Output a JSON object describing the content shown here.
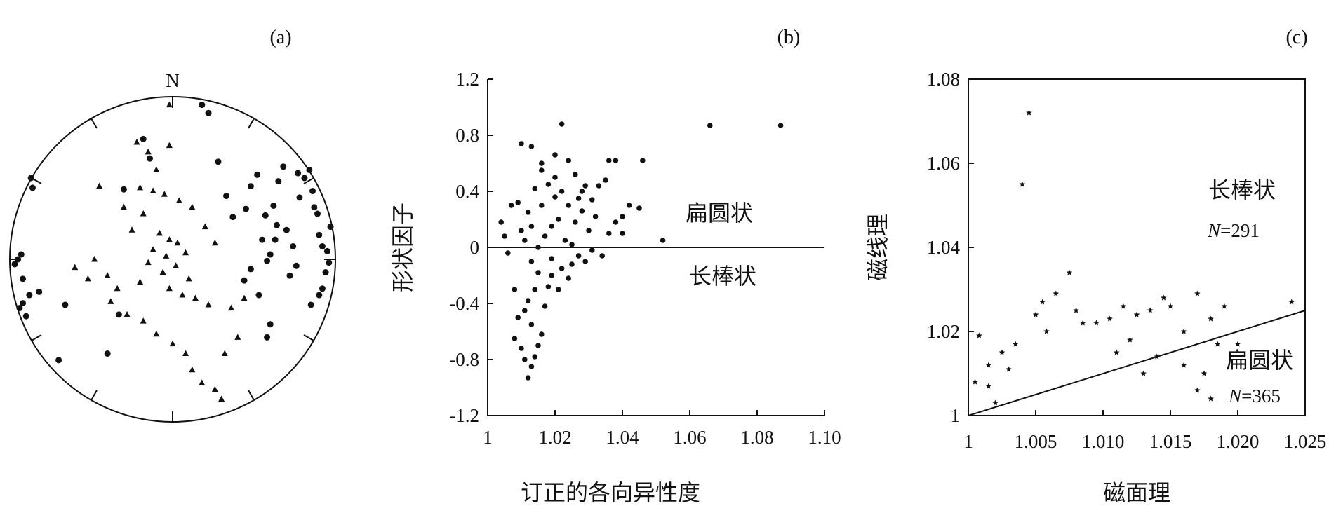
{
  "chart_data": [
    {
      "panel": "(a)",
      "type": "scatter",
      "subtype": "stereonet",
      "north_label": "N",
      "series": [
        {
          "marker": "circle",
          "points": [
            [
              -0.86,
              0.44
            ],
            [
              -0.87,
              0.5
            ],
            [
              -0.93,
              0.03
            ],
            [
              -0.95,
              0.0
            ],
            [
              -0.97,
              -0.03
            ],
            [
              -0.92,
              -0.12
            ],
            [
              -0.88,
              -0.22
            ],
            [
              -0.92,
              -0.27
            ],
            [
              -0.9,
              -0.35
            ],
            [
              -0.94,
              -0.3
            ],
            [
              -0.82,
              -0.2
            ],
            [
              -0.66,
              -0.28
            ],
            [
              -0.7,
              -0.62
            ],
            [
              -0.4,
              -0.58
            ],
            [
              -0.33,
              -0.34
            ],
            [
              -0.3,
              0.43
            ],
            [
              -0.14,
              0.62
            ],
            [
              -0.18,
              0.74
            ],
            [
              0.18,
              0.95
            ],
            [
              0.22,
              0.9
            ],
            [
              0.33,
              0.39
            ],
            [
              0.37,
              0.26
            ],
            [
              0.45,
              0.31
            ],
            [
              0.57,
              0.27
            ],
            [
              0.62,
              0.33
            ],
            [
              0.64,
              0.21
            ],
            [
              0.63,
              0.12
            ],
            [
              0.6,
              0.03
            ],
            [
              0.58,
              -0.01
            ],
            [
              0.55,
              0.12
            ],
            [
              0.48,
              -0.06
            ],
            [
              0.44,
              -0.13
            ],
            [
              0.53,
              -0.22
            ],
            [
              0.6,
              -0.4
            ],
            [
              0.58,
              -0.48
            ],
            [
              0.7,
              0.18
            ],
            [
              0.74,
              0.08
            ],
            [
              0.76,
              -0.04
            ],
            [
              0.72,
              -0.1
            ],
            [
              0.78,
              0.38
            ],
            [
              0.77,
              0.53
            ],
            [
              0.81,
              0.5
            ],
            [
              0.65,
              0.48
            ],
            [
              0.86,
              0.42
            ],
            [
              0.87,
              0.32
            ],
            [
              0.9,
              0.15
            ],
            [
              0.92,
              0.08
            ],
            [
              0.95,
              0.05
            ],
            [
              0.96,
              -0.02
            ],
            [
              0.94,
              -0.08
            ],
            [
              0.92,
              -0.18
            ],
            [
              0.9,
              -0.22
            ],
            [
              0.85,
              -0.28
            ],
            [
              0.97,
              0.2
            ],
            [
              0.89,
              0.28
            ],
            [
              0.84,
              0.55
            ],
            [
              0.68,
              0.57
            ],
            [
              0.52,
              0.52
            ],
            [
              0.48,
              0.45
            ],
            [
              0.28,
              0.6
            ]
          ]
        },
        {
          "marker": "triangle",
          "points": [
            [
              -0.02,
              0.95
            ],
            [
              -0.22,
              0.72
            ],
            [
              -0.15,
              0.66
            ],
            [
              -0.1,
              0.55
            ],
            [
              -0.45,
              0.45
            ],
            [
              -0.2,
              0.44
            ],
            [
              -0.12,
              0.42
            ],
            [
              -0.05,
              0.4
            ],
            [
              -0.18,
              0.28
            ],
            [
              -0.25,
              0.18
            ],
            [
              -0.08,
              0.16
            ],
            [
              -0.02,
              0.12
            ],
            [
              0.03,
              0.1
            ],
            [
              -0.12,
              0.06
            ],
            [
              -0.04,
              0.02
            ],
            [
              -0.15,
              -0.02
            ],
            [
              0.08,
              0.04
            ],
            [
              0.02,
              -0.04
            ],
            [
              -0.06,
              -0.08
            ],
            [
              0.1,
              -0.12
            ],
            [
              -0.2,
              -0.14
            ],
            [
              -0.02,
              -0.18
            ],
            [
              0.06,
              -0.22
            ],
            [
              0.14,
              -0.24
            ],
            [
              0.22,
              -0.28
            ],
            [
              -0.34,
              -0.18
            ],
            [
              -0.4,
              -0.1
            ],
            [
              -0.52,
              -0.12
            ],
            [
              -0.6,
              -0.05
            ],
            [
              -0.48,
              0.0
            ],
            [
              -0.38,
              -0.26
            ],
            [
              -0.28,
              -0.34
            ],
            [
              -0.18,
              -0.38
            ],
            [
              -0.1,
              -0.46
            ],
            [
              0.0,
              -0.52
            ],
            [
              0.08,
              -0.58
            ],
            [
              0.12,
              -0.68
            ],
            [
              0.18,
              -0.76
            ],
            [
              0.26,
              -0.8
            ],
            [
              0.3,
              -0.86
            ],
            [
              0.32,
              -0.58
            ],
            [
              0.4,
              -0.48
            ],
            [
              0.36,
              -0.3
            ],
            [
              0.44,
              -0.24
            ],
            [
              0.2,
              0.2
            ],
            [
              0.26,
              0.1
            ],
            [
              0.12,
              0.32
            ],
            [
              0.04,
              0.36
            ],
            [
              -0.3,
              0.32
            ],
            [
              -0.02,
              0.7
            ]
          ]
        }
      ]
    },
    {
      "panel": "(b)",
      "type": "scatter",
      "xlabel": "订正的各向异性度",
      "ylabel": "形状因子",
      "xlim": [
        1,
        1.1
      ],
      "ylim": [
        -1.2,
        1.2
      ],
      "xticks": [
        "1",
        "1.02",
        "1.04",
        "1.06",
        "1.08",
        "1.10"
      ],
      "yticks": [
        "1.2",
        "0.8",
        "0.4",
        "0",
        "-0.4",
        "-0.8",
        "-1.2"
      ],
      "reference_line": {
        "y": 0
      },
      "annotations": [
        "扁圆状",
        "长棒状"
      ],
      "points": [
        [
          1.01,
          0.74
        ],
        [
          1.013,
          0.72
        ],
        [
          1.022,
          0.88
        ],
        [
          1.066,
          0.87
        ],
        [
          1.087,
          0.87
        ],
        [
          1.052,
          0.05
        ],
        [
          1.046,
          0.62
        ],
        [
          1.045,
          0.28
        ],
        [
          1.042,
          0.3
        ],
        [
          1.04,
          0.22
        ],
        [
          1.038,
          0.62
        ],
        [
          1.036,
          0.62
        ],
        [
          1.035,
          0.48
        ],
        [
          1.033,
          0.44
        ],
        [
          1.031,
          0.34
        ],
        [
          1.028,
          0.4
        ],
        [
          1.026,
          0.52
        ],
        [
          1.024,
          0.62
        ],
        [
          1.02,
          0.66
        ],
        [
          1.016,
          0.6
        ],
        [
          1.004,
          0.18
        ],
        [
          1.005,
          0.08
        ],
        [
          1.006,
          -0.04
        ],
        [
          1.007,
          0.3
        ],
        [
          1.008,
          -0.3
        ],
        [
          1.009,
          -0.5
        ],
        [
          1.008,
          -0.65
        ],
        [
          1.01,
          -0.72
        ],
        [
          1.011,
          -0.8
        ],
        [
          1.012,
          -0.93
        ],
        [
          1.013,
          -0.85
        ],
        [
          1.014,
          -0.78
        ],
        [
          1.015,
          -0.7
        ],
        [
          1.016,
          -0.62
        ],
        [
          1.013,
          -0.55
        ],
        [
          1.011,
          -0.45
        ],
        [
          1.012,
          -0.38
        ],
        [
          1.014,
          -0.3
        ],
        [
          1.017,
          -0.42
        ],
        [
          1.018,
          -0.28
        ],
        [
          1.019,
          -0.2
        ],
        [
          1.021,
          -0.3
        ],
        [
          1.022,
          -0.15
        ],
        [
          1.024,
          -0.22
        ],
        [
          1.025,
          -0.12
        ],
        [
          1.027,
          -0.06
        ],
        [
          1.029,
          -0.1
        ],
        [
          1.031,
          -0.02
        ],
        [
          1.034,
          -0.06
        ],
        [
          1.036,
          0.1
        ],
        [
          1.038,
          0.18
        ],
        [
          1.04,
          0.1
        ],
        [
          1.032,
          0.22
        ],
        [
          1.03,
          0.12
        ],
        [
          1.028,
          0.26
        ],
        [
          1.026,
          0.18
        ],
        [
          1.024,
          0.3
        ],
        [
          1.022,
          0.4
        ],
        [
          1.02,
          0.36
        ],
        [
          1.018,
          0.45
        ],
        [
          1.016,
          0.3
        ],
        [
          1.014,
          0.42
        ],
        [
          1.012,
          0.25
        ],
        [
          1.01,
          0.12
        ],
        [
          1.009,
          0.32
        ],
        [
          1.011,
          0.05
        ],
        [
          1.013,
          -0.1
        ],
        [
          1.015,
          0.0
        ],
        [
          1.017,
          0.08
        ],
        [
          1.019,
          0.15
        ],
        [
          1.021,
          0.2
        ],
        [
          1.023,
          0.05
        ],
        [
          1.025,
          0.02
        ],
        [
          1.027,
          0.35
        ],
        [
          1.029,
          0.44
        ],
        [
          1.019,
          -0.08
        ],
        [
          1.015,
          -0.18
        ],
        [
          1.013,
          0.15
        ],
        [
          1.016,
          0.55
        ],
        [
          1.02,
          0.5
        ]
      ]
    },
    {
      "panel": "(c)",
      "type": "scatter",
      "xlabel": "磁面理",
      "ylabel": "磁线理",
      "xlim": [
        1,
        1.025
      ],
      "ylim": [
        1,
        1.08
      ],
      "xticks": [
        "1",
        "1.005",
        "1.010",
        "1.015",
        "1.020",
        "1.025"
      ],
      "yticks": [
        "1.08",
        "1.06",
        "1.04",
        "1.02",
        "1"
      ],
      "reference_line": {
        "from": [
          1.0,
          1.0
        ],
        "to": [
          1.025,
          1.025
        ]
      },
      "annotations": [
        {
          "label": "长棒状",
          "n_label": "N",
          "n_value": "=291"
        },
        {
          "label": "扁圆状",
          "n_label": "N",
          "n_value": "=365"
        }
      ],
      "points": [
        [
          1.0005,
          1.008
        ],
        [
          1.0008,
          1.019
        ],
        [
          1.0015,
          1.012
        ],
        [
          1.0015,
          1.007
        ],
        [
          1.002,
          1.003
        ],
        [
          1.0025,
          1.015
        ],
        [
          1.003,
          1.011
        ],
        [
          1.0035,
          1.017
        ],
        [
          1.004,
          1.055
        ],
        [
          1.0045,
          1.072
        ],
        [
          1.005,
          1.024
        ],
        [
          1.0055,
          1.027
        ],
        [
          1.0058,
          1.02
        ],
        [
          1.0065,
          1.029
        ],
        [
          1.0075,
          1.034
        ],
        [
          1.008,
          1.025
        ],
        [
          1.0085,
          1.022
        ],
        [
          1.0095,
          1.022
        ],
        [
          1.0105,
          1.023
        ],
        [
          1.0115,
          1.026
        ],
        [
          1.0125,
          1.024
        ],
        [
          1.0135,
          1.025
        ],
        [
          1.0145,
          1.028
        ],
        [
          1.015,
          1.026
        ],
        [
          1.016,
          1.02
        ],
        [
          1.017,
          1.029
        ],
        [
          1.018,
          1.023
        ],
        [
          1.019,
          1.026
        ],
        [
          1.0185,
          1.017
        ],
        [
          1.02,
          1.017
        ],
        [
          1.024,
          1.027
        ],
        [
          1.016,
          1.012
        ],
        [
          1.017,
          1.006
        ],
        [
          1.0175,
          1.01
        ],
        [
          1.018,
          1.004
        ],
        [
          1.014,
          1.014
        ],
        [
          1.013,
          1.01
        ],
        [
          1.012,
          1.018
        ],
        [
          1.011,
          1.015
        ]
      ]
    }
  ],
  "panel_labels": {
    "a": "(a)",
    "b": "(b)",
    "c": "(c)"
  }
}
